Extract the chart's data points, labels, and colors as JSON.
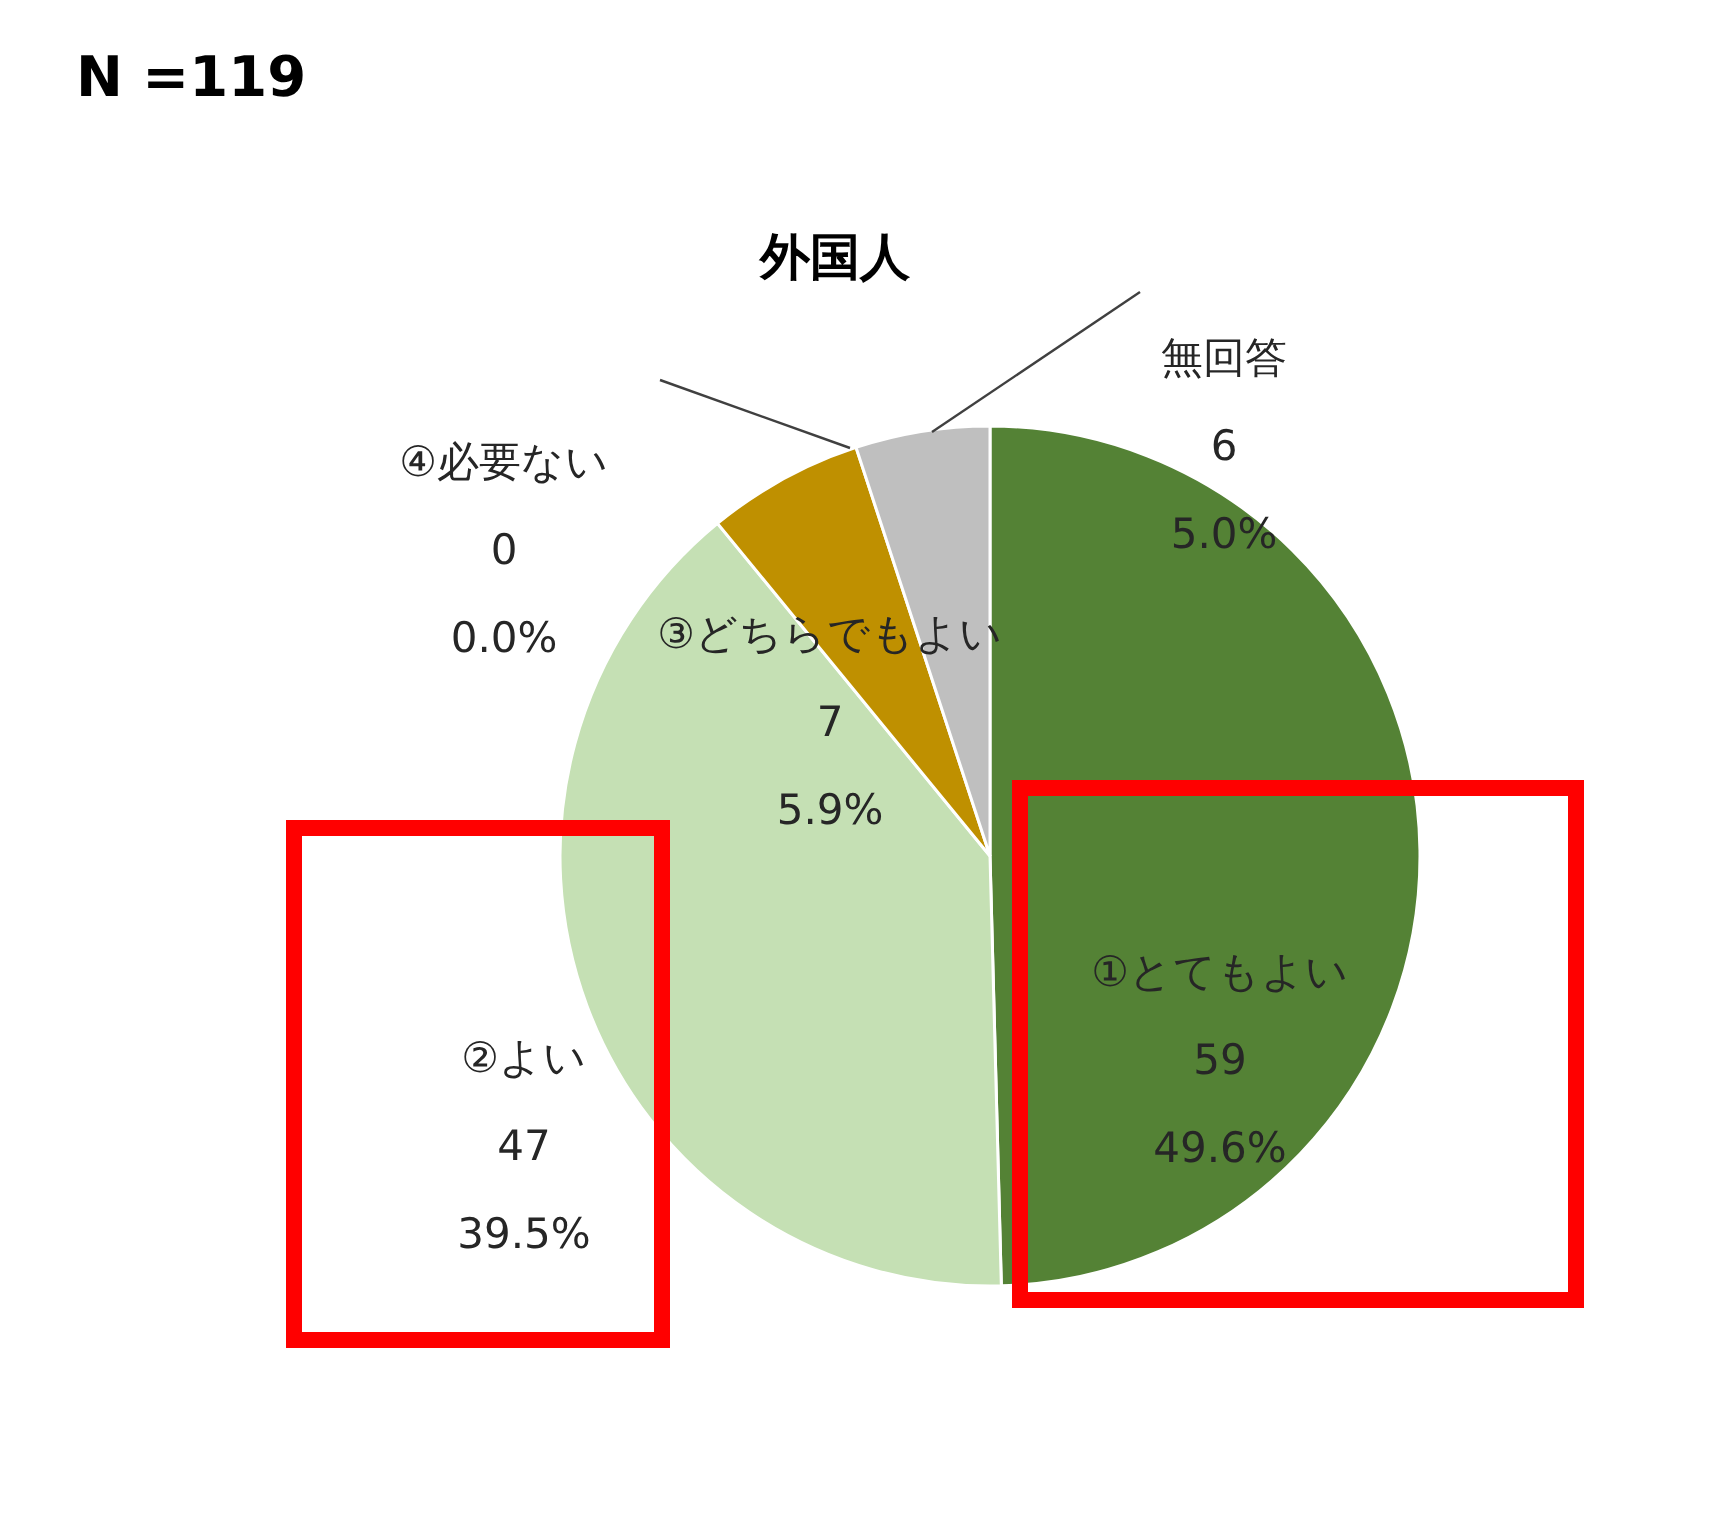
{
  "chart_data": {
    "type": "pie",
    "title": "外国人",
    "annotations": [
      "N =119"
    ],
    "categories": [
      "①とてもよい",
      "②よい",
      "③どちらでもよい",
      "④必要ない",
      "無回答"
    ],
    "values": [
      59,
      47,
      7,
      0,
      6
    ],
    "colors": [
      "#548235",
      "#c5e0b4",
      "#bf9000",
      "#7f6000",
      "#bfbfbf"
    ],
    "value_labels": [
      "59\n49.6%",
      "47\n39.5%",
      "7\n5.9%",
      "0\n0.0%",
      "6\n5.0%"
    ]
  }
}
